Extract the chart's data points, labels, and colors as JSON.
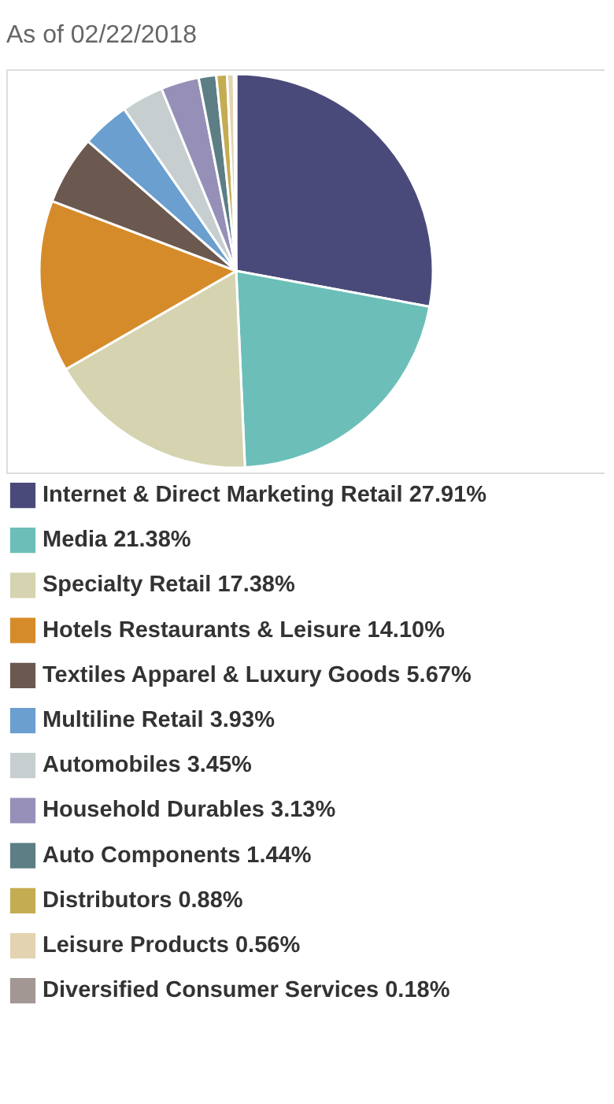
{
  "chart_data": {
    "type": "pie",
    "title": "As of 02/22/2018",
    "categories": [
      "Internet & Direct Marketing Retail",
      "Media",
      "Specialty Retail",
      "Hotels Restaurants & Leisure",
      "Textiles Apparel & Luxury Goods",
      "Multiline Retail",
      "Automobiles",
      "Household Durables",
      "Auto Components",
      "Distributors",
      "Leisure Products",
      "Diversified Consumer Services"
    ],
    "values": [
      27.91,
      21.38,
      17.38,
      14.1,
      5.67,
      3.93,
      3.45,
      3.13,
      1.44,
      0.88,
      0.56,
      0.18
    ],
    "value_labels": [
      "27.91%",
      "21.38%",
      "17.38%",
      "14.10%",
      "5.67%",
      "3.93%",
      "3.45%",
      "3.13%",
      "1.44%",
      "0.88%",
      "0.56%",
      "0.18%"
    ],
    "colors": [
      "#4a4a7a",
      "#6bbfb8",
      "#d6d4b0",
      "#d68b2a",
      "#6b584e",
      "#6a9fcf",
      "#c7ced0",
      "#9690b8",
      "#5c7e84",
      "#c4ac52",
      "#e4d3b0",
      "#a39793"
    ],
    "legend": "bottom"
  }
}
